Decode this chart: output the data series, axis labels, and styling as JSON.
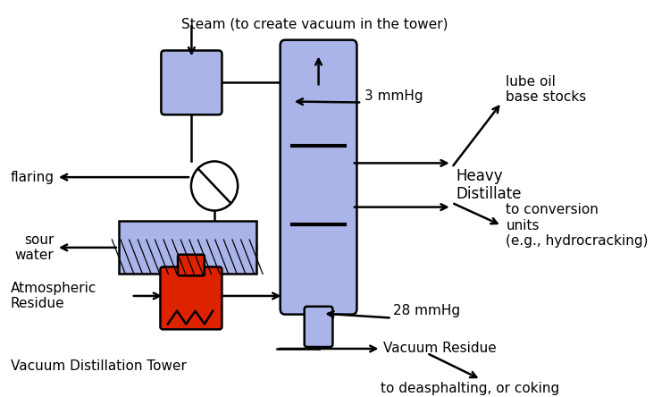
{
  "bg_color": "#ffffff",
  "tower_color": "#aab4e8",
  "red_color": "#dd2200",
  "labels": {
    "steam": "Steam (to create vacuum in the tower)",
    "flaring": "flaring",
    "sour_water": "sour\nwater",
    "atm_residue": "Atmospheric\nResidue",
    "vac_tower": "Vacuum Distillation Tower",
    "heavy_distillate": "Heavy\nDistillate",
    "lube_oil": "lube oil\nbase stocks",
    "to_conversion": "to conversion\nunits\n(e.g., hydrocracking)",
    "vacuum_residue": "Vacuum Residue",
    "to_deasphalting": "to deasphalting, or coking",
    "3mmhg": "3 mmHg",
    "28mmhg": "28 mmHg"
  },
  "figsize": [
    7.5,
    4.44
  ],
  "dpi": 100
}
